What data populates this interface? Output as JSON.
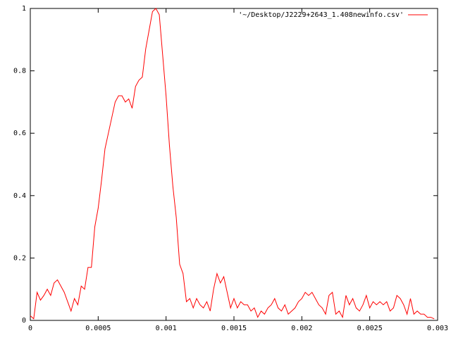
{
  "chart_data": {
    "type": "line",
    "xlim": [
      0,
      0.003
    ],
    "ylim": [
      0,
      1
    ],
    "xticks": [
      0,
      0.0005,
      0.001,
      0.0015,
      0.002,
      0.0025,
      0.003
    ],
    "yticks": [
      0,
      0.2,
      0.4,
      0.6,
      0.8,
      1
    ],
    "grid": false,
    "legend": "top-right",
    "x": [
      0,
      2.5e-05,
      5e-05,
      7.5e-05,
      0.0001,
      0.000125,
      0.00015,
      0.000175,
      0.0002,
      0.000225,
      0.00025,
      0.000275,
      0.0003,
      0.000325,
      0.00035,
      0.000375,
      0.0004,
      0.000425,
      0.00045,
      0.000475,
      0.0005,
      0.000525,
      0.00055,
      0.000575,
      0.0006,
      0.000625,
      0.00065,
      0.000675,
      0.0007,
      0.000725,
      0.00075,
      0.000775,
      0.0008,
      0.000825,
      0.00085,
      0.000875,
      0.0009,
      0.000925,
      0.00095,
      0.000975,
      0.001,
      0.001025,
      0.00105,
      0.001075,
      0.0011,
      0.001125,
      0.00115,
      0.001175,
      0.0012,
      0.001225,
      0.00125,
      0.001275,
      0.0013,
      0.001325,
      0.00135,
      0.001375,
      0.0014,
      0.001425,
      0.00145,
      0.001475,
      0.0015,
      0.001525,
      0.00155,
      0.001575,
      0.0016,
      0.001625,
      0.00165,
      0.001675,
      0.0017,
      0.001725,
      0.00175,
      0.001775,
      0.0018,
      0.001825,
      0.00185,
      0.001875,
      0.0019,
      0.001925,
      0.00195,
      0.001975,
      0.002,
      0.002025,
      0.00205,
      0.002075,
      0.0021,
      0.002125,
      0.00215,
      0.002175,
      0.0022,
      0.002225,
      0.00225,
      0.002275,
      0.0023,
      0.002325,
      0.00235,
      0.002375,
      0.0024,
      0.002425,
      0.00245,
      0.002475,
      0.0025,
      0.002525,
      0.00255,
      0.002575,
      0.0026,
      0.002625,
      0.00265,
      0.002675,
      0.0027,
      0.002725,
      0.00275,
      0.002775,
      0.0028,
      0.002825,
      0.00285,
      0.002875,
      0.0029,
      0.002925,
      0.00295,
      0.002975
    ],
    "series": [
      {
        "name": "'~/Desktop/J2229+2643_1.408newinfo.csv'",
        "color": "#ff0000",
        "values": [
          0.015,
          0.005,
          0.09,
          0.065,
          0.08,
          0.1,
          0.08,
          0.12,
          0.13,
          0.11,
          0.09,
          0.06,
          0.03,
          0.07,
          0.05,
          0.11,
          0.1,
          0.17,
          0.17,
          0.3,
          0.36,
          0.45,
          0.55,
          0.6,
          0.65,
          0.7,
          0.72,
          0.72,
          0.7,
          0.71,
          0.68,
          0.75,
          0.77,
          0.78,
          0.87,
          0.93,
          0.99,
          1.0,
          0.98,
          0.85,
          0.72,
          0.56,
          0.43,
          0.33,
          0.18,
          0.15,
          0.06,
          0.07,
          0.04,
          0.07,
          0.05,
          0.04,
          0.06,
          0.03,
          0.1,
          0.15,
          0.12,
          0.14,
          0.09,
          0.04,
          0.07,
          0.04,
          0.06,
          0.05,
          0.05,
          0.03,
          0.04,
          0.01,
          0.03,
          0.02,
          0.04,
          0.05,
          0.07,
          0.04,
          0.03,
          0.05,
          0.02,
          0.03,
          0.04,
          0.06,
          0.07,
          0.09,
          0.08,
          0.09,
          0.07,
          0.05,
          0.04,
          0.02,
          0.08,
          0.09,
          0.02,
          0.03,
          0.01,
          0.08,
          0.05,
          0.07,
          0.04,
          0.03,
          0.05,
          0.08,
          0.04,
          0.06,
          0.05,
          0.06,
          0.05,
          0.06,
          0.03,
          0.04,
          0.08,
          0.07,
          0.05,
          0.02,
          0.07,
          0.02,
          0.03,
          0.02,
          0.02,
          0.01,
          0.01,
          0.005
        ]
      }
    ]
  }
}
